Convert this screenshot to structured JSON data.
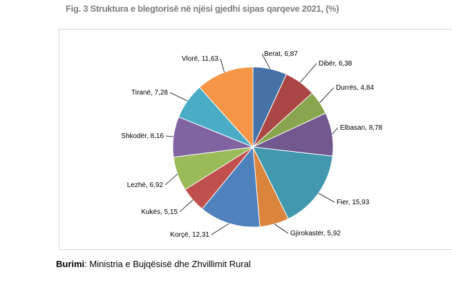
{
  "figure": {
    "title": "Fig. 3 Struktura e blegtorisë në njësi gjedhi sipas qarqeve 2021, (%)"
  },
  "source": {
    "label": "Burimi",
    "text": ": Ministria e Bujqësisë dhe Zhvillimit Rural"
  },
  "chart_data": {
    "type": "pie",
    "title": "Fig. 3 Struktura e blegtorisë në njësi gjedhi sipas qarqeve 2021, (%)",
    "start": "12 o'clock",
    "direction": "clockwise",
    "legend": "none",
    "slices": [
      {
        "name": "Berat",
        "value": 6.87,
        "label": "Berat, 6,87",
        "color": "#4572a7"
      },
      {
        "name": "Dibër",
        "value": 6.38,
        "label": "Dibër, 6,38",
        "color": "#aa4643"
      },
      {
        "name": "Durrës",
        "value": 4.84,
        "label": "Durrës, 4,84",
        "color": "#89a54e"
      },
      {
        "name": "Elbasan",
        "value": 8.78,
        "label": "Elbasan, 8,78",
        "color": "#71588f"
      },
      {
        "name": "Fier",
        "value": 15.93,
        "label": "Fier, 15,93",
        "color": "#4198af"
      },
      {
        "name": "Gjirokastër",
        "value": 5.92,
        "label": "Gjirokastër, 5,92",
        "color": "#db843d"
      },
      {
        "name": "Korçë",
        "value": 12.31,
        "label": "Korçë, 12,31",
        "color": "#4f81bd"
      },
      {
        "name": "Kukës",
        "value": 5.15,
        "label": "Kukës, 5,15",
        "color": "#c0504d"
      },
      {
        "name": "Lezhë",
        "value": 6.92,
        "label": "Lezhë, 6,92",
        "color": "#9bbb59"
      },
      {
        "name": "Shkodër",
        "value": 8.16,
        "label": "Shkodër, 8,16",
        "color": "#8064a2"
      },
      {
        "name": "Tiranë",
        "value": 7.28,
        "label": "Tiranë, 7,28",
        "color": "#4bacc6"
      },
      {
        "name": "Vlorë",
        "value": 11.63,
        "label": "Vlorë, 11,63",
        "color": "#f79646"
      }
    ]
  }
}
